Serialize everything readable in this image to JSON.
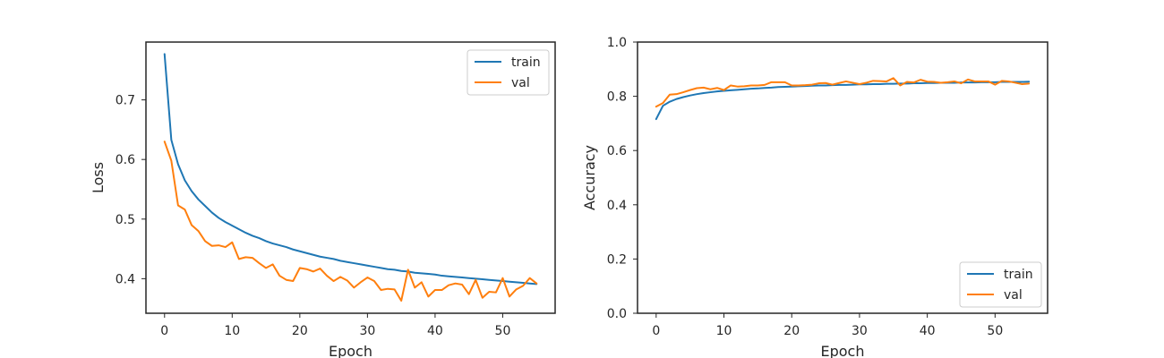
{
  "colors": {
    "train": "#1f77b4",
    "val": "#ff7f0e",
    "axis": "#262626"
  },
  "chart_data": [
    {
      "type": "line",
      "xlabel": "Epoch",
      "ylabel": "Loss",
      "xlim": [
        -2.75,
        57.75
      ],
      "ylim": [
        0.342,
        0.797
      ],
      "xticks": [
        0,
        10,
        20,
        30,
        40,
        50
      ],
      "yticks": [
        0.4,
        0.5,
        0.6,
        0.7
      ],
      "grid": false,
      "legend": "top-right",
      "series": [
        {
          "name": "train",
          "color_key": "train",
          "x": [
            0,
            1,
            2,
            3,
            4,
            5,
            6,
            7,
            8,
            9,
            10,
            11,
            12,
            13,
            14,
            15,
            16,
            17,
            18,
            19,
            20,
            21,
            22,
            23,
            24,
            25,
            26,
            27,
            28,
            29,
            30,
            31,
            32,
            33,
            34,
            35,
            36,
            37,
            38,
            39,
            40,
            41,
            42,
            43,
            44,
            45,
            46,
            47,
            48,
            49,
            50,
            51,
            52,
            53,
            54,
            55
          ],
          "values": [
            0.777,
            0.633,
            0.592,
            0.565,
            0.547,
            0.533,
            0.522,
            0.511,
            0.502,
            0.495,
            0.489,
            0.483,
            0.477,
            0.472,
            0.468,
            0.463,
            0.459,
            0.456,
            0.453,
            0.449,
            0.446,
            0.443,
            0.44,
            0.437,
            0.435,
            0.433,
            0.43,
            0.428,
            0.426,
            0.424,
            0.422,
            0.42,
            0.418,
            0.416,
            0.415,
            0.413,
            0.412,
            0.41,
            0.409,
            0.408,
            0.407,
            0.405,
            0.404,
            0.403,
            0.402,
            0.401,
            0.4,
            0.399,
            0.398,
            0.397,
            0.396,
            0.395,
            0.394,
            0.393,
            0.392,
            0.391
          ]
        },
        {
          "name": "val",
          "color_key": "val",
          "x": [
            0,
            1,
            2,
            3,
            4,
            5,
            6,
            7,
            8,
            9,
            10,
            11,
            12,
            13,
            14,
            15,
            16,
            17,
            18,
            19,
            20,
            21,
            22,
            23,
            24,
            25,
            26,
            27,
            28,
            29,
            30,
            31,
            32,
            33,
            34,
            35,
            36,
            37,
            38,
            39,
            40,
            41,
            42,
            43,
            44,
            45,
            46,
            47,
            48,
            49,
            50,
            51,
            52,
            53,
            54,
            55
          ],
          "values": [
            0.63,
            0.598,
            0.523,
            0.516,
            0.49,
            0.48,
            0.463,
            0.455,
            0.456,
            0.453,
            0.461,
            0.433,
            0.436,
            0.435,
            0.426,
            0.418,
            0.424,
            0.405,
            0.398,
            0.396,
            0.418,
            0.416,
            0.412,
            0.417,
            0.405,
            0.396,
            0.403,
            0.397,
            0.385,
            0.394,
            0.402,
            0.396,
            0.381,
            0.383,
            0.382,
            0.363,
            0.415,
            0.385,
            0.394,
            0.37,
            0.381,
            0.381,
            0.389,
            0.392,
            0.39,
            0.374,
            0.398,
            0.368,
            0.378,
            0.377,
            0.401,
            0.37,
            0.382,
            0.388,
            0.401,
            0.392
          ]
        }
      ]
    },
    {
      "type": "line",
      "xlabel": "Epoch",
      "ylabel": "Accuracy",
      "xlim": [
        -2.75,
        57.75
      ],
      "ylim": [
        0.0,
        1.0
      ],
      "xticks": [
        0,
        10,
        20,
        30,
        40,
        50
      ],
      "yticks": [
        0.0,
        0.2,
        0.4,
        0.6,
        0.8,
        1.0
      ],
      "grid": false,
      "legend": "bottom-right",
      "series": [
        {
          "name": "train",
          "color_key": "train",
          "x": [
            0,
            1,
            2,
            3,
            4,
            5,
            6,
            7,
            8,
            9,
            10,
            11,
            12,
            13,
            14,
            15,
            16,
            17,
            18,
            19,
            20,
            21,
            22,
            23,
            24,
            25,
            26,
            27,
            28,
            29,
            30,
            31,
            32,
            33,
            34,
            35,
            36,
            37,
            38,
            39,
            40,
            41,
            42,
            43,
            44,
            45,
            46,
            47,
            48,
            49,
            50,
            51,
            52,
            53,
            54,
            55
          ],
          "values": [
            0.716,
            0.765,
            0.78,
            0.79,
            0.797,
            0.803,
            0.808,
            0.812,
            0.815,
            0.818,
            0.82,
            0.822,
            0.824,
            0.826,
            0.828,
            0.829,
            0.831,
            0.832,
            0.834,
            0.835,
            0.836,
            0.837,
            0.838,
            0.839,
            0.84,
            0.84,
            0.841,
            0.842,
            0.842,
            0.843,
            0.844,
            0.844,
            0.845,
            0.845,
            0.846,
            0.846,
            0.847,
            0.847,
            0.848,
            0.848,
            0.849,
            0.849,
            0.85,
            0.85,
            0.85,
            0.851,
            0.851,
            0.851,
            0.852,
            0.852,
            0.852,
            0.853,
            0.853,
            0.853,
            0.853,
            0.854
          ]
        },
        {
          "name": "val",
          "color_key": "val",
          "x": [
            0,
            1,
            2,
            3,
            4,
            5,
            6,
            7,
            8,
            9,
            10,
            11,
            12,
            13,
            14,
            15,
            16,
            17,
            18,
            19,
            20,
            21,
            22,
            23,
            24,
            25,
            26,
            27,
            28,
            29,
            30,
            31,
            32,
            33,
            34,
            35,
            36,
            37,
            38,
            39,
            40,
            41,
            42,
            43,
            44,
            45,
            46,
            47,
            48,
            49,
            50,
            51,
            52,
            53,
            54,
            55
          ],
          "values": [
            0.762,
            0.775,
            0.806,
            0.808,
            0.815,
            0.823,
            0.83,
            0.832,
            0.826,
            0.831,
            0.823,
            0.84,
            0.836,
            0.837,
            0.84,
            0.84,
            0.842,
            0.852,
            0.852,
            0.852,
            0.84,
            0.84,
            0.841,
            0.843,
            0.848,
            0.849,
            0.843,
            0.849,
            0.855,
            0.85,
            0.845,
            0.85,
            0.857,
            0.856,
            0.855,
            0.867,
            0.84,
            0.853,
            0.851,
            0.861,
            0.854,
            0.853,
            0.85,
            0.852,
            0.855,
            0.848,
            0.862,
            0.855,
            0.855,
            0.855,
            0.843,
            0.857,
            0.855,
            0.85,
            0.845,
            0.847
          ]
        }
      ]
    }
  ]
}
